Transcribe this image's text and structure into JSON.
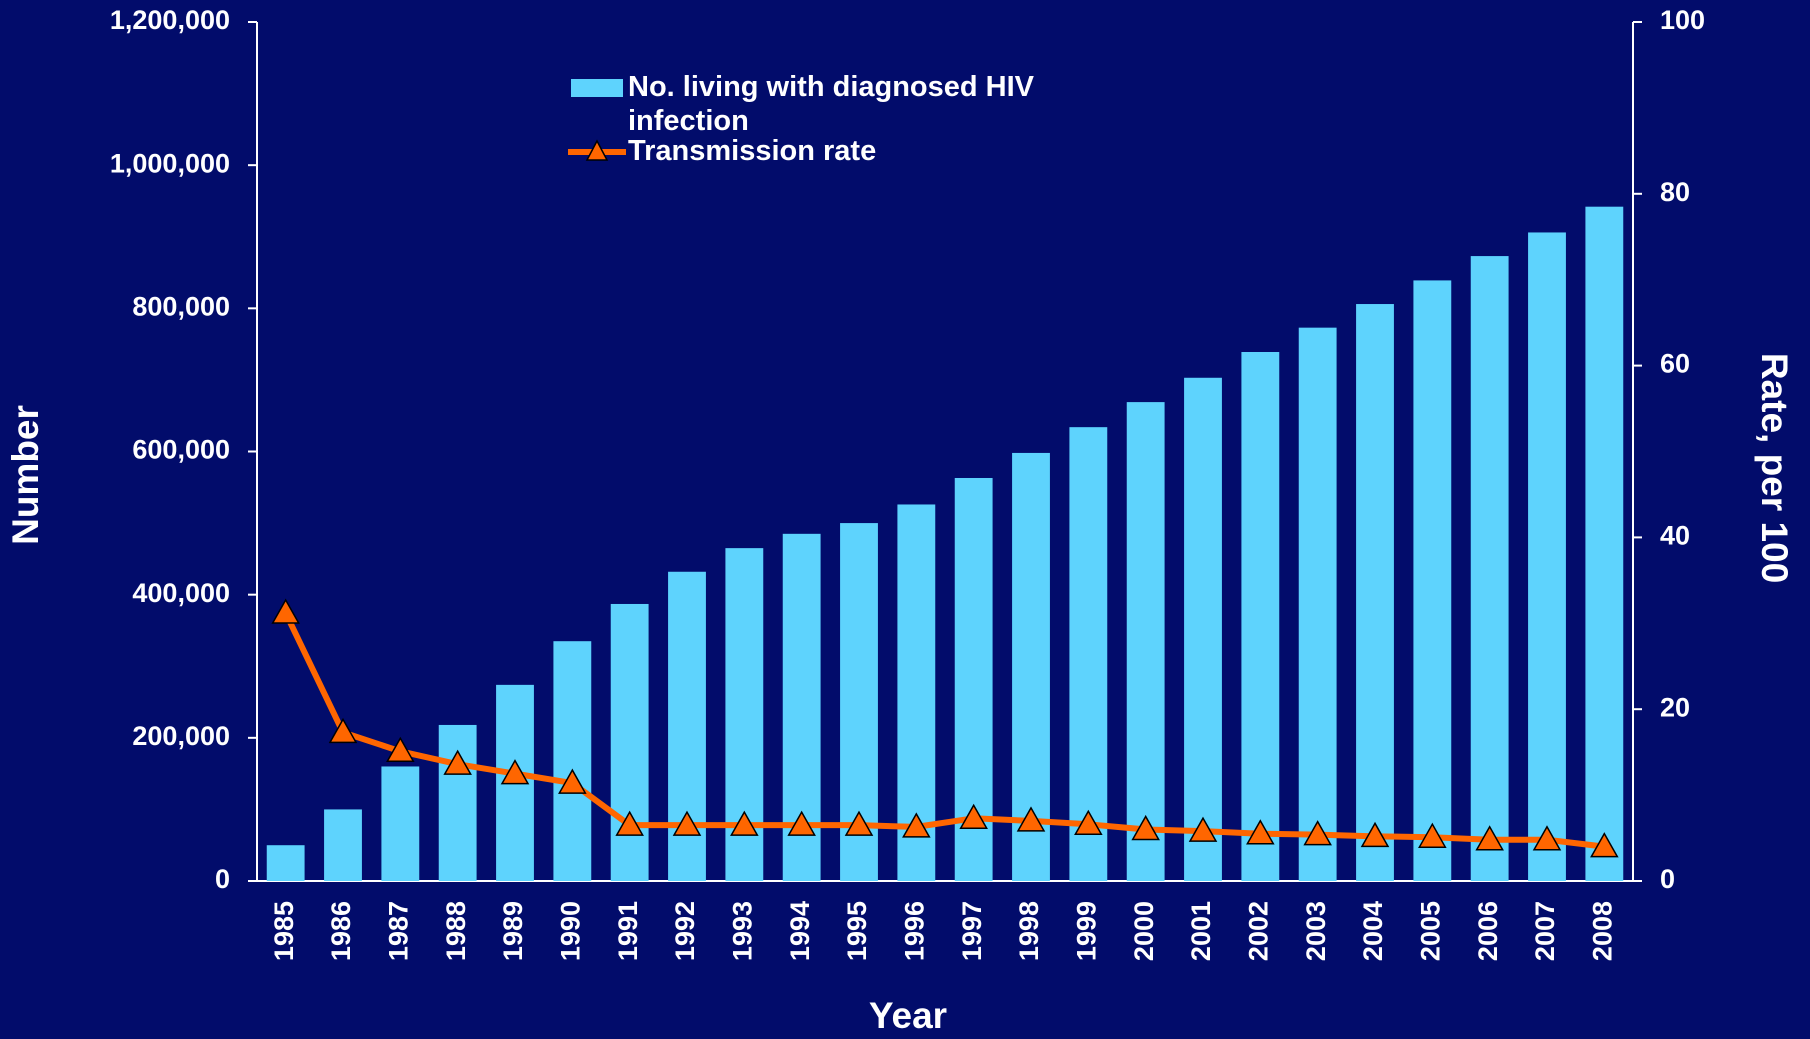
{
  "chart_data": {
    "type": "bar-line",
    "x_label": "Year",
    "y_label": "Number",
    "y2_label": "Rate, per 100",
    "categories": [
      "1985",
      "1986",
      "1987",
      "1988",
      "1989",
      "1990",
      "1991",
      "1992",
      "1993",
      "1994",
      "1995",
      "1996",
      "1997",
      "1998",
      "1999",
      "2000",
      "2001",
      "2002",
      "2003",
      "2004",
      "2005",
      "2006",
      "2007",
      "2008"
    ],
    "series": [
      {
        "name": "No. living with diagnosed HIV infection",
        "type": "bar",
        "color": "#5ed3fd",
        "axis": "y",
        "values": [
          50000,
          100000,
          160000,
          218000,
          274000,
          335000,
          387000,
          432000,
          465000,
          485000,
          500000,
          526000,
          563000,
          598000,
          634000,
          669000,
          703000,
          739000,
          773000,
          806000,
          839000,
          873000,
          906000,
          942000
        ]
      },
      {
        "name": "Transmission rate",
        "type": "line",
        "color": "#ff6600",
        "axis": "y2",
        "values": [
          31.2,
          17.3,
          15.1,
          13.6,
          12.5,
          11.4,
          6.5,
          6.5,
          6.5,
          6.5,
          6.5,
          6.3,
          7.3,
          7.0,
          6.6,
          6.0,
          5.8,
          5.5,
          5.4,
          5.2,
          5.1,
          4.8,
          4.8,
          4.0
        ]
      }
    ],
    "ylim": [
      0,
      1200000
    ],
    "yticks": [
      0,
      {
        "value": 200000,
        "label": "200,000"
      },
      {
        "value": 400000,
        "label": "400,000"
      },
      {
        "value": 600000,
        "label": "600,000"
      },
      {
        "value": 800000,
        "label": "800,000"
      },
      {
        "value": 1000000,
        "label": "1,000,000"
      },
      {
        "value": 1200000,
        "label": "1,200,000"
      }
    ],
    "y2lim": [
      0,
      100
    ],
    "y2ticks": [
      0,
      20,
      40,
      60,
      80,
      100
    ]
  }
}
